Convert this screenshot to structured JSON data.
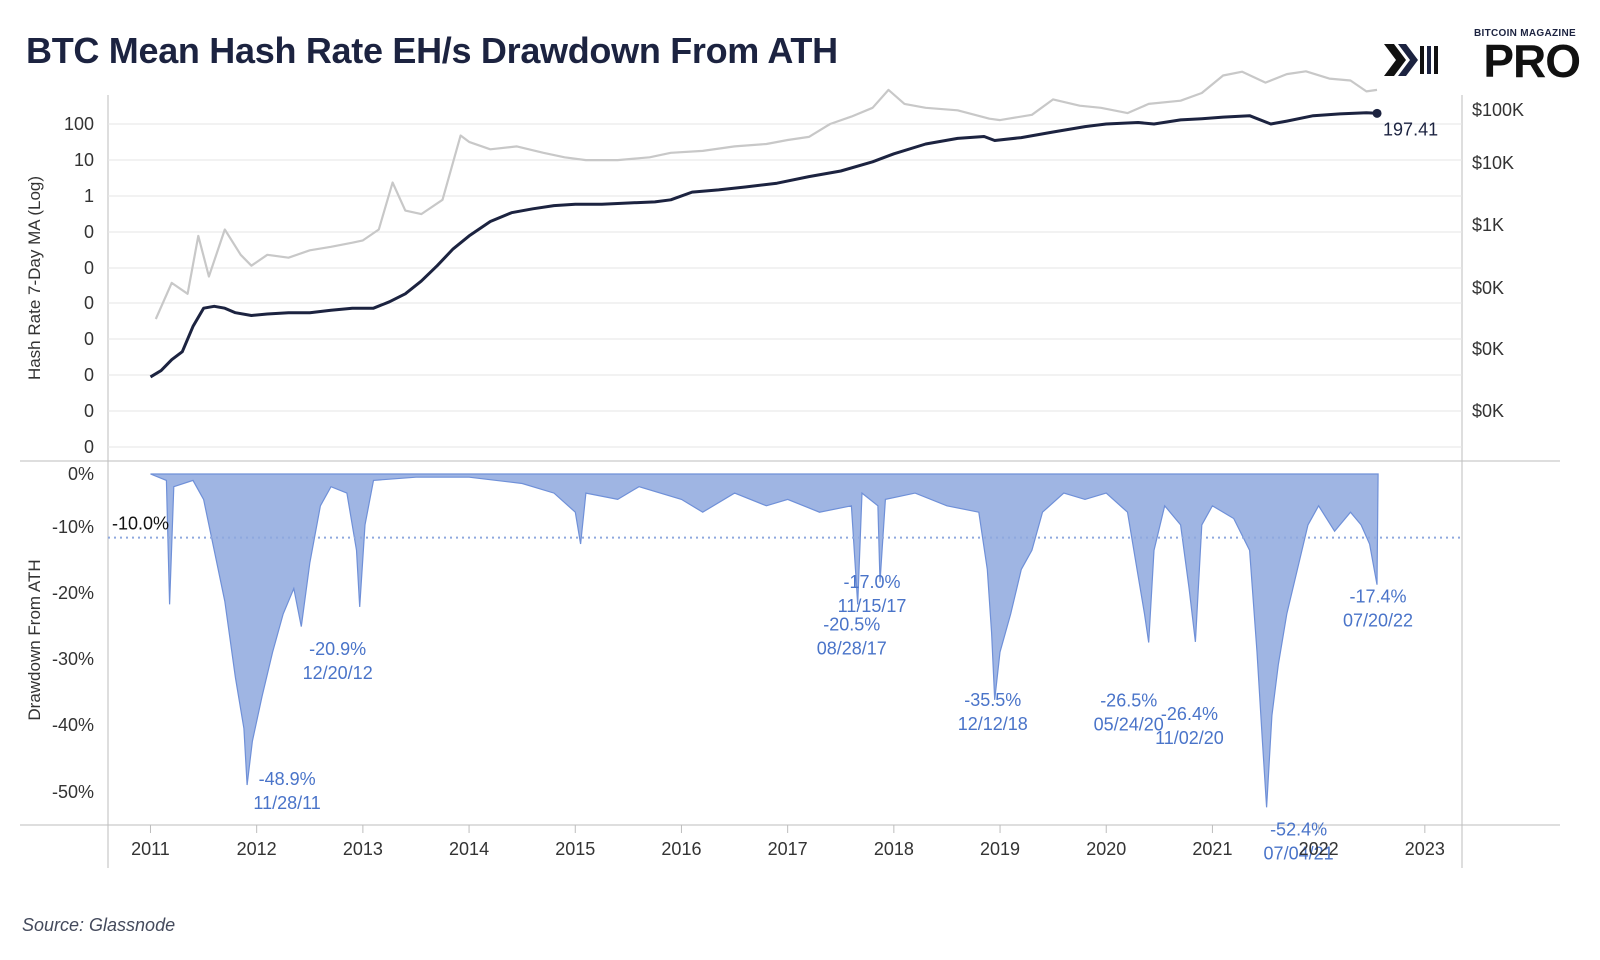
{
  "header": {
    "title": "BTC Mean Hash Rate EH/s Drawdown From ATH"
  },
  "logo": {
    "top_text": "BITCOIN MAGAZINE",
    "main_text": "PRO"
  },
  "footer": {
    "source": "Source: Glassnode"
  },
  "colors": {
    "hash_line": "#1c2340",
    "price_line": "#c8c8c8",
    "drawdown_fill": "#8ea8de",
    "drawdown_edge": "#6f90d8",
    "annotation": "#4a74c9",
    "grid": "#e6e6e6",
    "axis_text": "#333333"
  },
  "chart_data": [
    {
      "type": "line",
      "title": "BTC Mean Hash Rate EH/s Drawdown From ATH",
      "ylabel": "Hash Rate 7-Day MA (Log)",
      "y_ticks": [
        "100",
        "10",
        "1",
        "0",
        "0",
        "0",
        "0",
        "0",
        "0",
        "0"
      ],
      "y2_ticks": [
        "$100K",
        "$10K",
        "$1K",
        "$0K",
        "$0K",
        "$0K"
      ],
      "log_scale": true,
      "last_value_label": "197.41",
      "series": [
        {
          "color": "#1c2340",
          "points": [
            [
              2011.0,
              1e-05
            ],
            [
              2011.1,
              1.5e-05
            ],
            [
              2011.2,
              3e-05
            ],
            [
              2011.3,
              5e-05
            ],
            [
              2011.4,
              0.00025
            ],
            [
              2011.5,
              0.0008
            ],
            [
              2011.6,
              0.0009
            ],
            [
              2011.7,
              0.0008
            ],
            [
              2011.8,
              0.0006
            ],
            [
              2011.95,
              0.0005
            ],
            [
              2012.1,
              0.00055
            ],
            [
              2012.3,
              0.0006
            ],
            [
              2012.5,
              0.0006
            ],
            [
              2012.7,
              0.0007
            ],
            [
              2012.9,
              0.0008
            ],
            [
              2013.0,
              0.0008
            ],
            [
              2013.1,
              0.0008
            ],
            [
              2013.25,
              0.0012
            ],
            [
              2013.4,
              0.002
            ],
            [
              2013.55,
              0.0045
            ],
            [
              2013.7,
              0.012
            ],
            [
              2013.85,
              0.035
            ],
            [
              2014.0,
              0.08
            ],
            [
              2014.2,
              0.2
            ],
            [
              2014.4,
              0.35
            ],
            [
              2014.6,
              0.45
            ],
            [
              2014.8,
              0.55
            ],
            [
              2015.0,
              0.6
            ],
            [
              2015.25,
              0.6
            ],
            [
              2015.5,
              0.65
            ],
            [
              2015.75,
              0.7
            ],
            [
              2015.9,
              0.8
            ],
            [
              2016.1,
              1.3
            ],
            [
              2016.35,
              1.5
            ],
            [
              2016.6,
              1.8
            ],
            [
              2016.9,
              2.3
            ],
            [
              2017.2,
              3.5
            ],
            [
              2017.5,
              5
            ],
            [
              2017.8,
              9
            ],
            [
              2018.0,
              15
            ],
            [
              2018.3,
              28
            ],
            [
              2018.6,
              40
            ],
            [
              2018.85,
              45
            ],
            [
              2018.95,
              35
            ],
            [
              2019.2,
              42
            ],
            [
              2019.5,
              60
            ],
            [
              2019.8,
              85
            ],
            [
              2020.0,
              100
            ],
            [
              2020.3,
              110
            ],
            [
              2020.45,
              100
            ],
            [
              2020.7,
              130
            ],
            [
              2020.9,
              140
            ],
            [
              2021.1,
              155
            ],
            [
              2021.35,
              170
            ],
            [
              2021.55,
              100
            ],
            [
              2021.7,
              120
            ],
            [
              2021.95,
              170
            ],
            [
              2022.2,
              190
            ],
            [
              2022.45,
              205
            ],
            [
              2022.55,
              197.41
            ]
          ]
        },
        {
          "color": "#c8c8c8",
          "points": [
            [
              2011.05,
              1e-05
            ],
            [
              2011.2,
              0.0001
            ],
            [
              2011.35,
              5e-05
            ],
            [
              2011.45,
              0.002
            ],
            [
              2011.55,
              0.00015
            ],
            [
              2011.7,
              0.003
            ],
            [
              2011.85,
              0.0006
            ],
            [
              2011.95,
              0.0003
            ],
            [
              2012.1,
              0.0006
            ],
            [
              2012.3,
              0.0005
            ],
            [
              2012.5,
              0.0008
            ],
            [
              2012.7,
              0.001
            ],
            [
              2012.9,
              0.0013
            ],
            [
              2013.0,
              0.0015
            ],
            [
              2013.15,
              0.003
            ],
            [
              2013.28,
              0.06
            ],
            [
              2013.4,
              0.01
            ],
            [
              2013.55,
              0.008
            ],
            [
              2013.75,
              0.02
            ],
            [
              2013.92,
              1.2
            ],
            [
              2014.0,
              0.8
            ],
            [
              2014.2,
              0.5
            ],
            [
              2014.45,
              0.6
            ],
            [
              2014.7,
              0.4
            ],
            [
              2014.9,
              0.3
            ],
            [
              2015.1,
              0.25
            ],
            [
              2015.4,
              0.25
            ],
            [
              2015.7,
              0.3
            ],
            [
              2015.9,
              0.4
            ],
            [
              2016.2,
              0.45
            ],
            [
              2016.5,
              0.6
            ],
            [
              2016.8,
              0.7
            ],
            [
              2017.0,
              0.9
            ],
            [
              2017.2,
              1.1
            ],
            [
              2017.4,
              2.5
            ],
            [
              2017.6,
              4
            ],
            [
              2017.8,
              7
            ],
            [
              2017.95,
              22
            ],
            [
              2018.1,
              9
            ],
            [
              2018.3,
              7
            ],
            [
              2018.6,
              6
            ],
            [
              2018.9,
              3.5
            ],
            [
              2019.0,
              3.2
            ],
            [
              2019.3,
              4.5
            ],
            [
              2019.5,
              12
            ],
            [
              2019.75,
              8
            ],
            [
              2019.95,
              7
            ],
            [
              2020.2,
              5
            ],
            [
              2020.4,
              9
            ],
            [
              2020.7,
              11
            ],
            [
              2020.9,
              18
            ],
            [
              2021.1,
              55
            ],
            [
              2021.28,
              70
            ],
            [
              2021.5,
              35
            ],
            [
              2021.7,
              60
            ],
            [
              2021.88,
              72
            ],
            [
              2022.1,
              45
            ],
            [
              2022.3,
              40
            ],
            [
              2022.45,
              20
            ],
            [
              2022.55,
              22
            ]
          ]
        }
      ]
    },
    {
      "type": "area",
      "ylabel": "Drawdown From ATH",
      "y_ticks": [
        "0%",
        "-10%",
        "-20%",
        "-30%",
        "-40%",
        "-50%"
      ],
      "ylim": [
        -55,
        2
      ],
      "x_ticks": [
        "2011",
        "2012",
        "2013",
        "2014",
        "2015",
        "2016",
        "2017",
        "2018",
        "2019",
        "2020",
        "2021",
        "2022",
        "2023"
      ],
      "reference_line": {
        "value": -10,
        "label": "-10.0%"
      },
      "annotations": [
        {
          "value": "-48.9%",
          "date": "11/28/11",
          "x": 2011.91,
          "y": -48.9
        },
        {
          "value": "-20.9%",
          "date": "12/20/12",
          "x": 2012.97,
          "y": -20.9
        },
        {
          "value": "-20.5%",
          "date": "08/28/17",
          "x": 2017.66,
          "y": -20.5
        },
        {
          "value": "-17.0%",
          "date": "11/15/17",
          "x": 2017.87,
          "y": -17.0
        },
        {
          "value": "-35.5%",
          "date": "12/12/18",
          "x": 2018.95,
          "y": -35.5
        },
        {
          "value": "-26.5%",
          "date": "05/24/20",
          "x": 2020.4,
          "y": -26.5
        },
        {
          "value": "-26.4%",
          "date": "11/02/20",
          "x": 2020.84,
          "y": -26.4
        },
        {
          "value": "-52.4%",
          "date": "07/04/21",
          "x": 2021.51,
          "y": -52.4
        },
        {
          "value": "-17.4%",
          "date": "07/20/22",
          "x": 2022.55,
          "y": -17.4
        }
      ],
      "points": [
        [
          2011.0,
          0
        ],
        [
          2011.15,
          -1
        ],
        [
          2011.18,
          -20.5
        ],
        [
          2011.22,
          -2
        ],
        [
          2011.4,
          -1
        ],
        [
          2011.5,
          -4
        ],
        [
          2011.6,
          -12
        ],
        [
          2011.7,
          -20
        ],
        [
          2011.8,
          -32
        ],
        [
          2011.88,
          -40
        ],
        [
          2011.91,
          -48.9
        ],
        [
          2011.96,
          -42
        ],
        [
          2012.05,
          -35
        ],
        [
          2012.15,
          -28
        ],
        [
          2012.25,
          -22
        ],
        [
          2012.35,
          -18
        ],
        [
          2012.42,
          -24
        ],
        [
          2012.5,
          -14
        ],
        [
          2012.6,
          -5
        ],
        [
          2012.7,
          -2
        ],
        [
          2012.85,
          -3
        ],
        [
          2012.94,
          -12
        ],
        [
          2012.97,
          -20.9
        ],
        [
          2013.02,
          -8
        ],
        [
          2013.1,
          -1
        ],
        [
          2013.5,
          -0.5
        ],
        [
          2014.0,
          -0.5
        ],
        [
          2014.5,
          -1.5
        ],
        [
          2014.8,
          -3
        ],
        [
          2015.0,
          -6
        ],
        [
          2015.05,
          -11
        ],
        [
          2015.1,
          -3
        ],
        [
          2015.4,
          -4
        ],
        [
          2015.6,
          -2
        ],
        [
          2016.0,
          -4
        ],
        [
          2016.2,
          -6
        ],
        [
          2016.5,
          -3
        ],
        [
          2016.8,
          -5
        ],
        [
          2017.0,
          -4
        ],
        [
          2017.3,
          -6
        ],
        [
          2017.6,
          -5
        ],
        [
          2017.66,
          -20.5
        ],
        [
          2017.7,
          -3
        ],
        [
          2017.85,
          -5
        ],
        [
          2017.87,
          -17.0
        ],
        [
          2017.92,
          -4
        ],
        [
          2018.2,
          -3
        ],
        [
          2018.5,
          -5
        ],
        [
          2018.8,
          -6
        ],
        [
          2018.88,
          -15
        ],
        [
          2018.92,
          -25
        ],
        [
          2018.95,
          -35.5
        ],
        [
          2019.0,
          -28
        ],
        [
          2019.1,
          -22
        ],
        [
          2019.2,
          -15
        ],
        [
          2019.3,
          -12
        ],
        [
          2019.4,
          -6
        ],
        [
          2019.6,
          -3
        ],
        [
          2019.8,
          -4
        ],
        [
          2020.0,
          -3
        ],
        [
          2020.2,
          -6
        ],
        [
          2020.3,
          -16
        ],
        [
          2020.36,
          -22
        ],
        [
          2020.4,
          -26.5
        ],
        [
          2020.45,
          -12
        ],
        [
          2020.55,
          -5
        ],
        [
          2020.7,
          -8
        ],
        [
          2020.78,
          -18
        ],
        [
          2020.84,
          -26.4
        ],
        [
          2020.9,
          -8
        ],
        [
          2021.0,
          -5
        ],
        [
          2021.2,
          -7
        ],
        [
          2021.35,
          -12
        ],
        [
          2021.42,
          -28
        ],
        [
          2021.47,
          -42
        ],
        [
          2021.51,
          -52.4
        ],
        [
          2021.56,
          -38
        ],
        [
          2021.62,
          -30
        ],
        [
          2021.7,
          -22
        ],
        [
          2021.8,
          -15
        ],
        [
          2021.9,
          -8
        ],
        [
          2022.0,
          -5
        ],
        [
          2022.15,
          -9
        ],
        [
          2022.3,
          -6
        ],
        [
          2022.4,
          -8
        ],
        [
          2022.48,
          -11
        ],
        [
          2022.55,
          -17.4
        ],
        [
          2022.56,
          0
        ]
      ]
    }
  ]
}
